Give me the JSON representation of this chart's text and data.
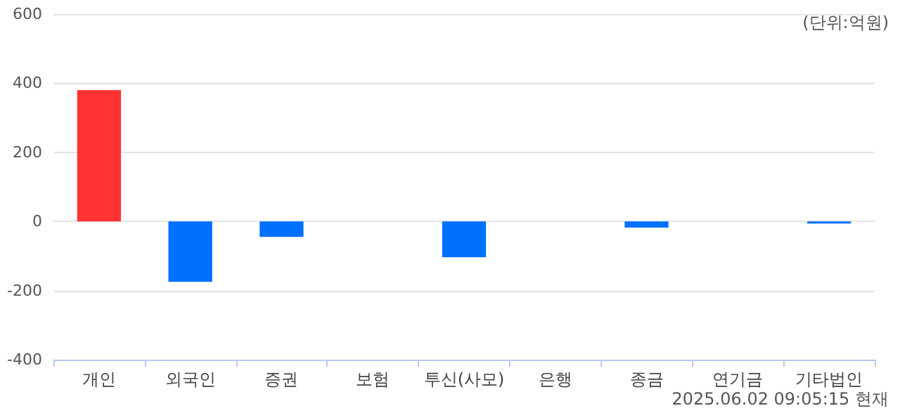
{
  "chart_data": {
    "type": "bar",
    "categories": [
      "개인",
      "외국인",
      "증권",
      "보험",
      "투신(사모)",
      "은행",
      "종금",
      "연기금",
      "기타법인"
    ],
    "values": [
      380,
      -175,
      -45,
      0,
      -104,
      0,
      -18,
      0,
      -6
    ],
    "colors": [
      "#ff3333",
      "#0070ff",
      "#0070ff",
      "#0070ff",
      "#0070ff",
      "#0070ff",
      "#0070ff",
      "#0070ff",
      "#0070ff"
    ],
    "ylim": [
      -400,
      600
    ],
    "yticks": [
      -400,
      -200,
      0,
      200,
      400,
      600
    ],
    "grid": "y",
    "annotations": [
      "(단위:억원)",
      "2025.06.02 09:05:15 현재"
    ]
  }
}
